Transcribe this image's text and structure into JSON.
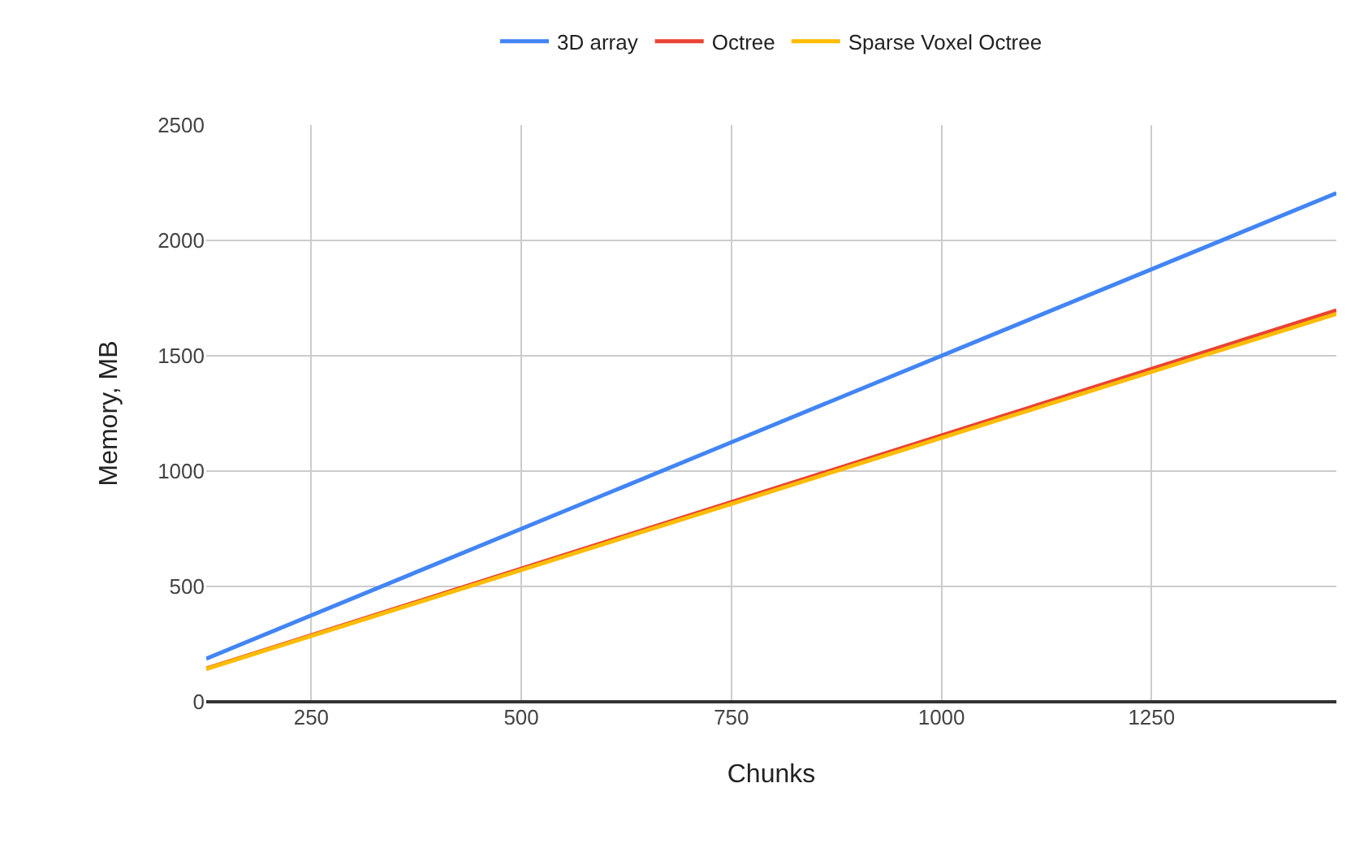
{
  "chart_data": {
    "type": "line",
    "xlabel": "Chunks",
    "ylabel": "Memory, MB",
    "x": [
      125,
      750,
      1470
    ],
    "series": [
      {
        "name": "3D array",
        "color": "#4285f4",
        "values": [
          187,
          1125,
          2205
        ]
      },
      {
        "name": "Octree",
        "color": "#ea4335",
        "values": [
          144,
          866,
          1697
        ]
      },
      {
        "name": "Sparse Voxel Octree",
        "color": "#fbbc04",
        "values": [
          142,
          858,
          1682
        ]
      }
    ],
    "xlim": [
      125,
      1470
    ],
    "xticks": [
      250,
      500,
      750,
      1000,
      1250
    ],
    "ylim": [
      0,
      2500
    ],
    "yticks": [
      0,
      500,
      1000,
      1500,
      2000,
      2500
    ],
    "grid": true,
    "legend": "top",
    "marker": "none",
    "line_style": "solid"
  }
}
